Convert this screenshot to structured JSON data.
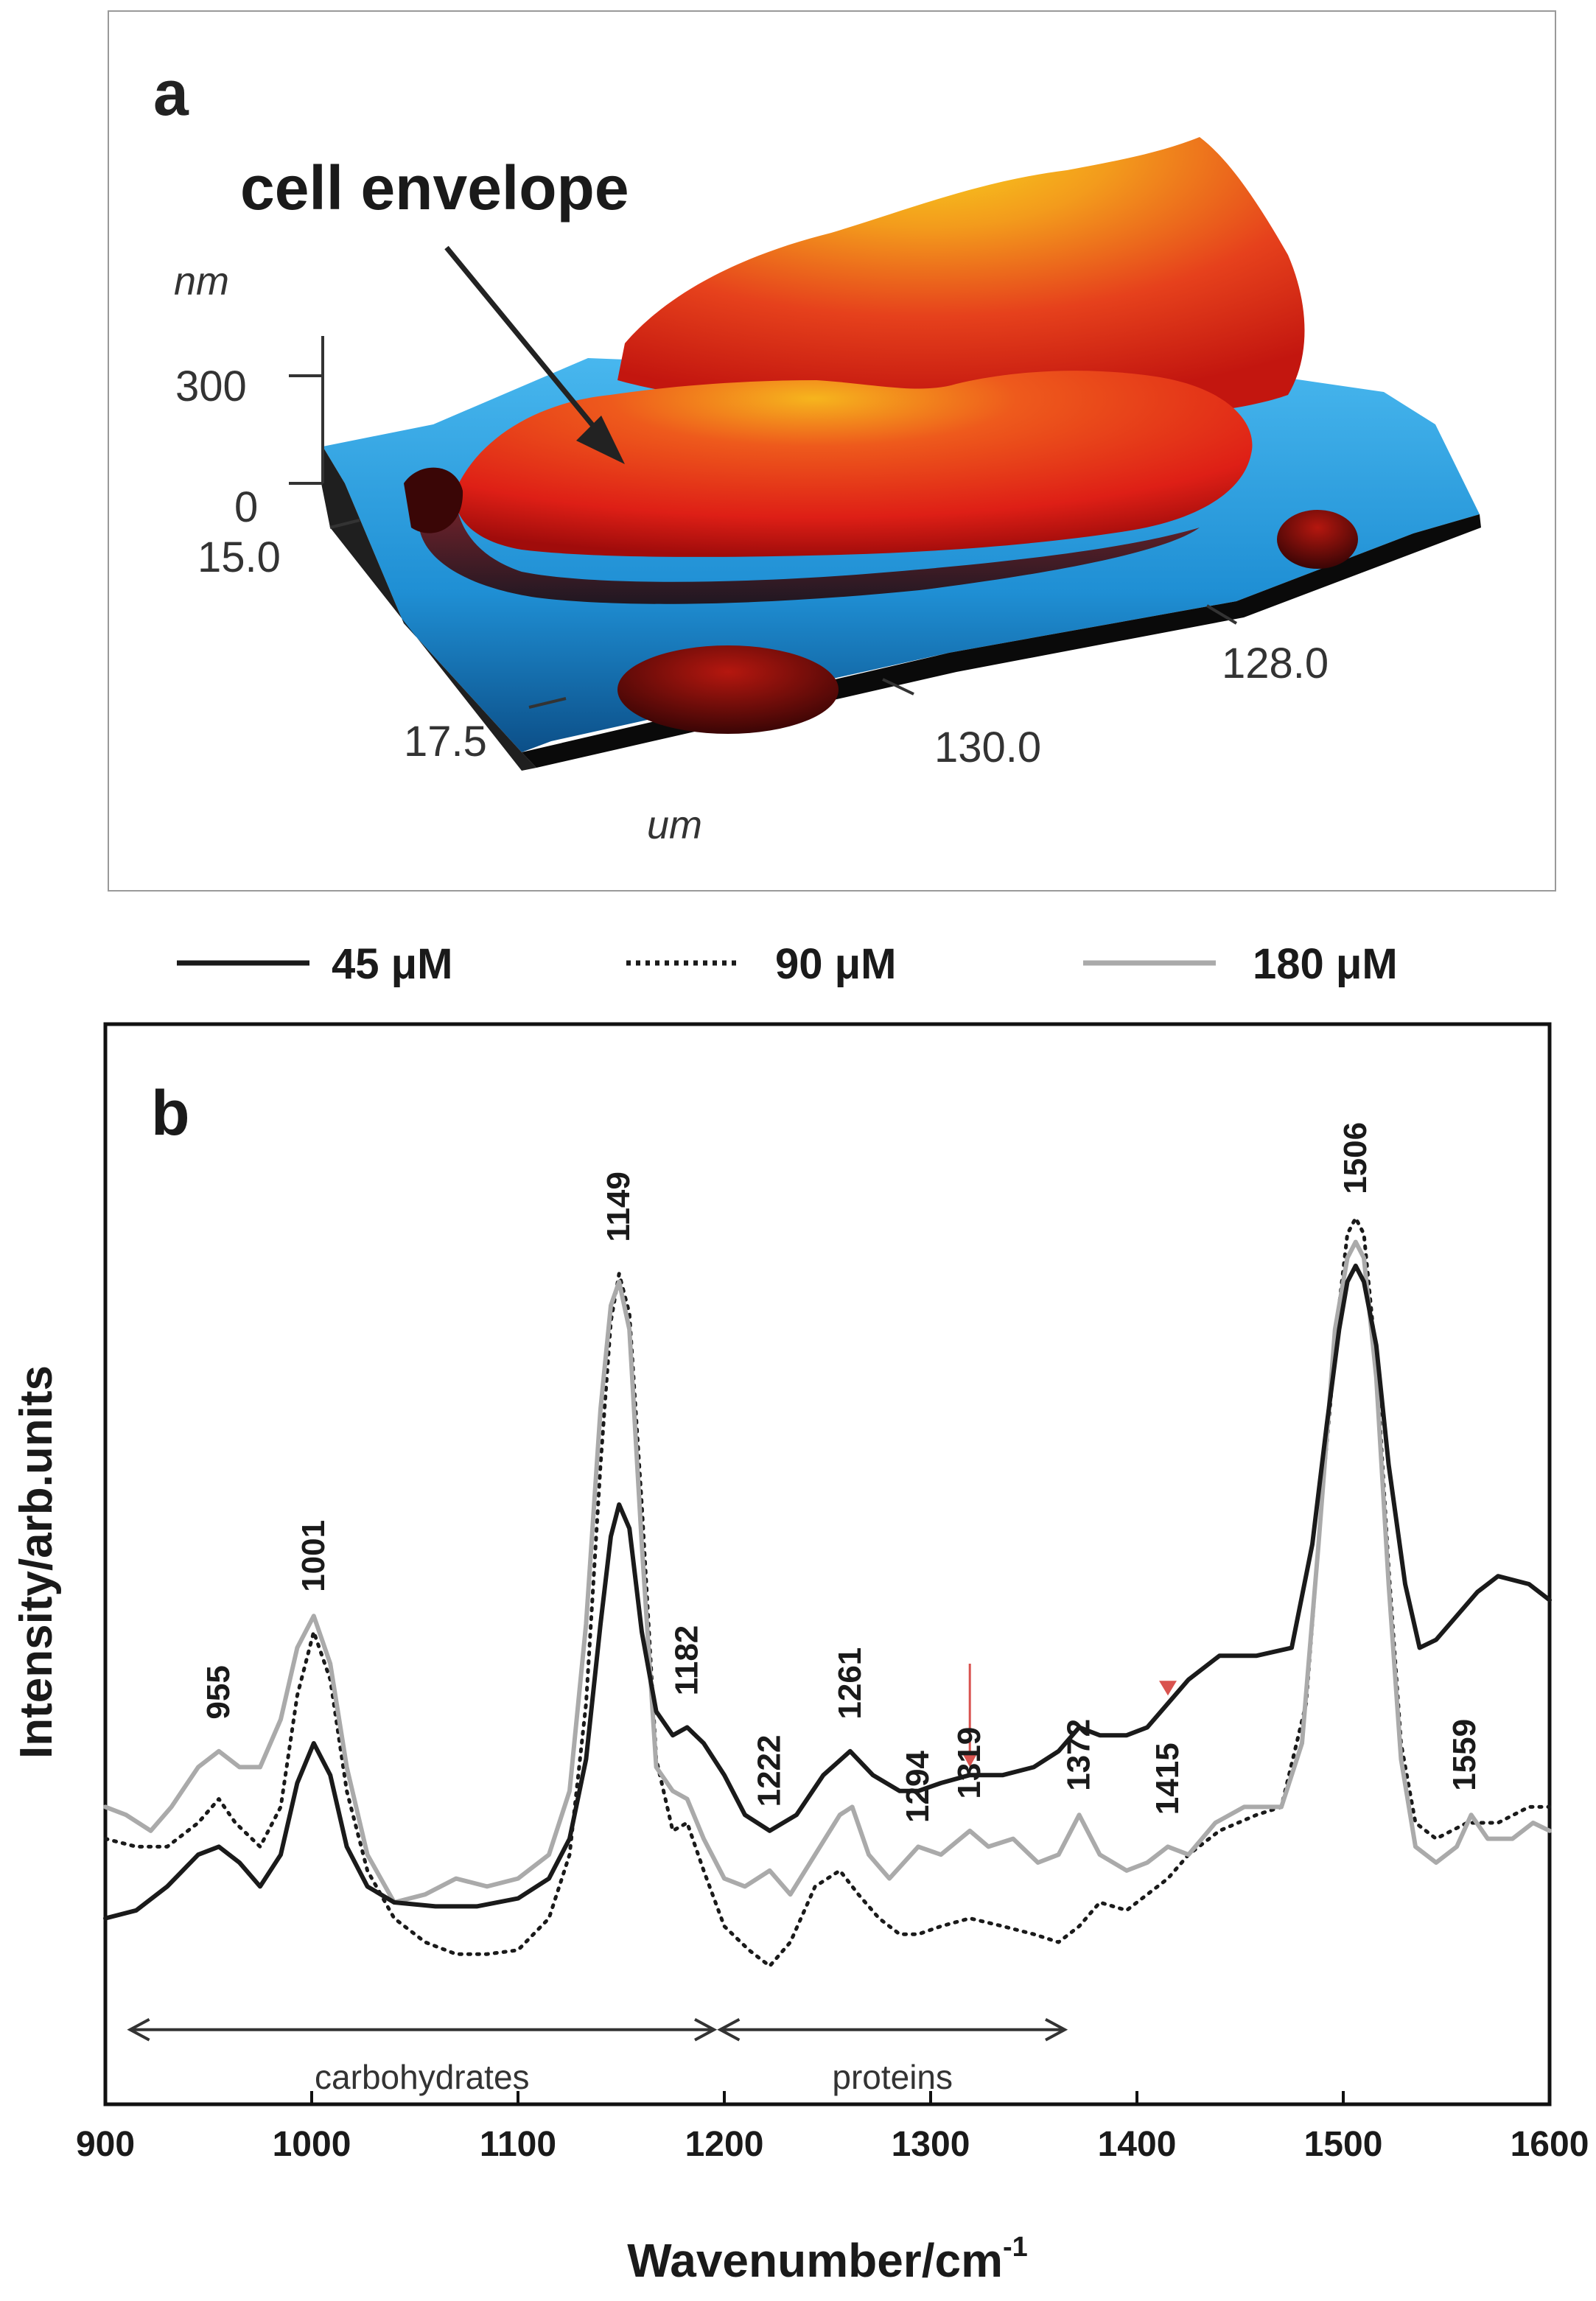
{
  "panel_a": {
    "letter": "a",
    "annotation": "cell envelope",
    "z_unit": "nm",
    "z_ticks": [
      "300",
      "0"
    ],
    "y_ticks": [
      "15.0",
      "17.5"
    ],
    "x_ticks": [
      "128.0",
      "130.0"
    ],
    "xy_unit": "um",
    "colors": {
      "high": "#f6c21c",
      "mid": "#e8361c",
      "low": "#5a0808",
      "substrate": "#2a9fe0"
    }
  },
  "legend": {
    "items": [
      {
        "label": "45 μM",
        "style": "solid",
        "color": "#1a1a1a"
      },
      {
        "label": "90 μM",
        "style": "dotted",
        "color": "#1a1a1a"
      },
      {
        "label": "180 μM",
        "style": "solid",
        "color": "#aaaaaa"
      }
    ]
  },
  "chart_data": {
    "type": "line",
    "panel_label": "b",
    "xlabel": "Wavenumber/cm",
    "xlabel_sup": "-1",
    "ylabel": "Intensity/arb.units",
    "xlim": [
      900,
      1600
    ],
    "ylim": [
      0,
      100
    ],
    "xticks": [
      900,
      1000,
      1100,
      1200,
      1300,
      1400,
      1500,
      1600
    ],
    "series": [
      {
        "name": "45 μM",
        "style": "solid",
        "color": "#1a1a1a",
        "points": [
          [
            900,
            8
          ],
          [
            915,
            9
          ],
          [
            930,
            12
          ],
          [
            945,
            16
          ],
          [
            955,
            17
          ],
          [
            965,
            15
          ],
          [
            975,
            12
          ],
          [
            985,
            16
          ],
          [
            993,
            25
          ],
          [
            1001,
            30
          ],
          [
            1009,
            26
          ],
          [
            1017,
            17
          ],
          [
            1027,
            12
          ],
          [
            1040,
            10
          ],
          [
            1060,
            9.5
          ],
          [
            1080,
            9.5
          ],
          [
            1100,
            10.5
          ],
          [
            1115,
            13
          ],
          [
            1125,
            18
          ],
          [
            1133,
            28
          ],
          [
            1140,
            45
          ],
          [
            1145,
            56
          ],
          [
            1149,
            60
          ],
          [
            1154,
            57
          ],
          [
            1160,
            44
          ],
          [
            1167,
            34
          ],
          [
            1175,
            31
          ],
          [
            1182,
            32
          ],
          [
            1190,
            30
          ],
          [
            1200,
            26
          ],
          [
            1210,
            21
          ],
          [
            1222,
            19
          ],
          [
            1235,
            21
          ],
          [
            1248,
            26
          ],
          [
            1261,
            29
          ],
          [
            1272,
            26
          ],
          [
            1285,
            24
          ],
          [
            1294,
            24
          ],
          [
            1305,
            25
          ],
          [
            1319,
            26
          ],
          [
            1335,
            26
          ],
          [
            1350,
            27
          ],
          [
            1362,
            29
          ],
          [
            1372,
            32
          ],
          [
            1382,
            31
          ],
          [
            1395,
            31
          ],
          [
            1405,
            32
          ],
          [
            1415,
            35
          ],
          [
            1425,
            38
          ],
          [
            1440,
            41
          ],
          [
            1458,
            41
          ],
          [
            1475,
            42
          ],
          [
            1485,
            55
          ],
          [
            1492,
            70
          ],
          [
            1498,
            82
          ],
          [
            1502,
            88
          ],
          [
            1506,
            90
          ],
          [
            1510,
            88
          ],
          [
            1516,
            80
          ],
          [
            1522,
            65
          ],
          [
            1530,
            50
          ],
          [
            1537,
            42
          ],
          [
            1545,
            43
          ],
          [
            1555,
            46
          ],
          [
            1565,
            49
          ],
          [
            1575,
            51
          ],
          [
            1590,
            50
          ],
          [
            1600,
            48
          ]
        ]
      },
      {
        "name": "90 μM",
        "style": "dotted",
        "color": "#1a1a1a",
        "points": [
          [
            900,
            18
          ],
          [
            915,
            17
          ],
          [
            930,
            17
          ],
          [
            945,
            20
          ],
          [
            955,
            23
          ],
          [
            963,
            20
          ],
          [
            975,
            17
          ],
          [
            985,
            22
          ],
          [
            993,
            36
          ],
          [
            1001,
            44
          ],
          [
            1009,
            38
          ],
          [
            1017,
            24
          ],
          [
            1027,
            14
          ],
          [
            1040,
            8
          ],
          [
            1055,
            5
          ],
          [
            1070,
            3.5
          ],
          [
            1085,
            3.5
          ],
          [
            1100,
            4
          ],
          [
            1115,
            8
          ],
          [
            1125,
            16
          ],
          [
            1133,
            35
          ],
          [
            1140,
            65
          ],
          [
            1145,
            83
          ],
          [
            1149,
            89
          ],
          [
            1154,
            84
          ],
          [
            1160,
            60
          ],
          [
            1167,
            28
          ],
          [
            1175,
            19
          ],
          [
            1182,
            20
          ],
          [
            1190,
            14
          ],
          [
            1200,
            7
          ],
          [
            1212,
            4
          ],
          [
            1222,
            2
          ],
          [
            1232,
            5
          ],
          [
            1244,
            12
          ],
          [
            1256,
            14
          ],
          [
            1265,
            11
          ],
          [
            1275,
            8
          ],
          [
            1285,
            6
          ],
          [
            1294,
            6
          ],
          [
            1305,
            7
          ],
          [
            1319,
            8
          ],
          [
            1335,
            7
          ],
          [
            1350,
            6
          ],
          [
            1362,
            5
          ],
          [
            1372,
            7
          ],
          [
            1382,
            10
          ],
          [
            1395,
            9
          ],
          [
            1405,
            11
          ],
          [
            1415,
            13
          ],
          [
            1425,
            16
          ],
          [
            1440,
            19
          ],
          [
            1458,
            21
          ],
          [
            1470,
            22
          ],
          [
            1482,
            35
          ],
          [
            1490,
            62
          ],
          [
            1498,
            85
          ],
          [
            1502,
            94
          ],
          [
            1506,
            96
          ],
          [
            1510,
            94
          ],
          [
            1516,
            78
          ],
          [
            1522,
            52
          ],
          [
            1528,
            30
          ],
          [
            1535,
            20
          ],
          [
            1545,
            18
          ],
          [
            1560,
            20
          ],
          [
            1575,
            20
          ],
          [
            1590,
            22
          ],
          [
            1600,
            22
          ]
        ]
      },
      {
        "name": "180 μM",
        "style": "solid",
        "color": "#aaaaaa",
        "points": [
          [
            900,
            22
          ],
          [
            910,
            21
          ],
          [
            922,
            19
          ],
          [
            932,
            22
          ],
          [
            945,
            27
          ],
          [
            955,
            29
          ],
          [
            965,
            27
          ],
          [
            975,
            27
          ],
          [
            985,
            33
          ],
          [
            993,
            42
          ],
          [
            1001,
            46
          ],
          [
            1009,
            40
          ],
          [
            1017,
            27
          ],
          [
            1027,
            16
          ],
          [
            1040,
            10
          ],
          [
            1055,
            11
          ],
          [
            1070,
            13
          ],
          [
            1085,
            12
          ],
          [
            1100,
            13
          ],
          [
            1115,
            16
          ],
          [
            1125,
            24
          ],
          [
            1133,
            45
          ],
          [
            1140,
            72
          ],
          [
            1145,
            85
          ],
          [
            1149,
            88
          ],
          [
            1154,
            82
          ],
          [
            1160,
            55
          ],
          [
            1167,
            27
          ],
          [
            1175,
            24
          ],
          [
            1182,
            23
          ],
          [
            1190,
            18
          ],
          [
            1200,
            13
          ],
          [
            1210,
            12
          ],
          [
            1222,
            14
          ],
          [
            1232,
            11
          ],
          [
            1244,
            16
          ],
          [
            1256,
            21
          ],
          [
            1262,
            22
          ],
          [
            1270,
            16
          ],
          [
            1280,
            13
          ],
          [
            1294,
            17
          ],
          [
            1305,
            16
          ],
          [
            1319,
            19
          ],
          [
            1328,
            17
          ],
          [
            1340,
            18
          ],
          [
            1352,
            15
          ],
          [
            1362,
            16
          ],
          [
            1372,
            21
          ],
          [
            1382,
            16
          ],
          [
            1395,
            14
          ],
          [
            1405,
            15
          ],
          [
            1415,
            17
          ],
          [
            1425,
            16
          ],
          [
            1438,
            20
          ],
          [
            1452,
            22
          ],
          [
            1470,
            22
          ],
          [
            1480,
            30
          ],
          [
            1488,
            55
          ],
          [
            1496,
            82
          ],
          [
            1502,
            91
          ],
          [
            1506,
            93
          ],
          [
            1510,
            91
          ],
          [
            1516,
            76
          ],
          [
            1522,
            50
          ],
          [
            1528,
            28
          ],
          [
            1535,
            17
          ],
          [
            1545,
            15
          ],
          [
            1555,
            17
          ],
          [
            1562,
            21
          ],
          [
            1570,
            18
          ],
          [
            1582,
            18
          ],
          [
            1592,
            20
          ],
          [
            1600,
            19
          ]
        ]
      }
    ],
    "peak_labels": [
      {
        "value": 955,
        "label": "955",
        "y": 33
      },
      {
        "value": 1001,
        "label": "1001",
        "y": 49
      },
      {
        "value": 1149,
        "label": "1149",
        "y": 93
      },
      {
        "value": 1182,
        "label": "1182",
        "y": 36
      },
      {
        "value": 1222,
        "label": "1222",
        "y": 22
      },
      {
        "value": 1261,
        "label": "1261",
        "y": 33
      },
      {
        "value": 1294,
        "label": "1294",
        "y": 20
      },
      {
        "value": 1319,
        "label": "1319",
        "y": 23
      },
      {
        "value": 1372,
        "label": "1372",
        "y": 24
      },
      {
        "value": 1415,
        "label": "1415",
        "y": 21
      },
      {
        "value": 1506,
        "label": "1506",
        "y": 99
      },
      {
        "value": 1559,
        "label": "1559",
        "y": 24
      }
    ],
    "markers": [
      {
        "type": "arrow",
        "x": 1319,
        "y_from": 40,
        "y_to": 27,
        "color": "#d9534f"
      },
      {
        "type": "triangle",
        "x": 1415,
        "y": 36,
        "color": "#d9534f"
      }
    ],
    "ranges": [
      {
        "label": "carbohydrates",
        "from": 912,
        "to": 1195,
        "y": -6
      },
      {
        "label": "proteins",
        "from": 1198,
        "to": 1365,
        "y": -6
      }
    ]
  }
}
